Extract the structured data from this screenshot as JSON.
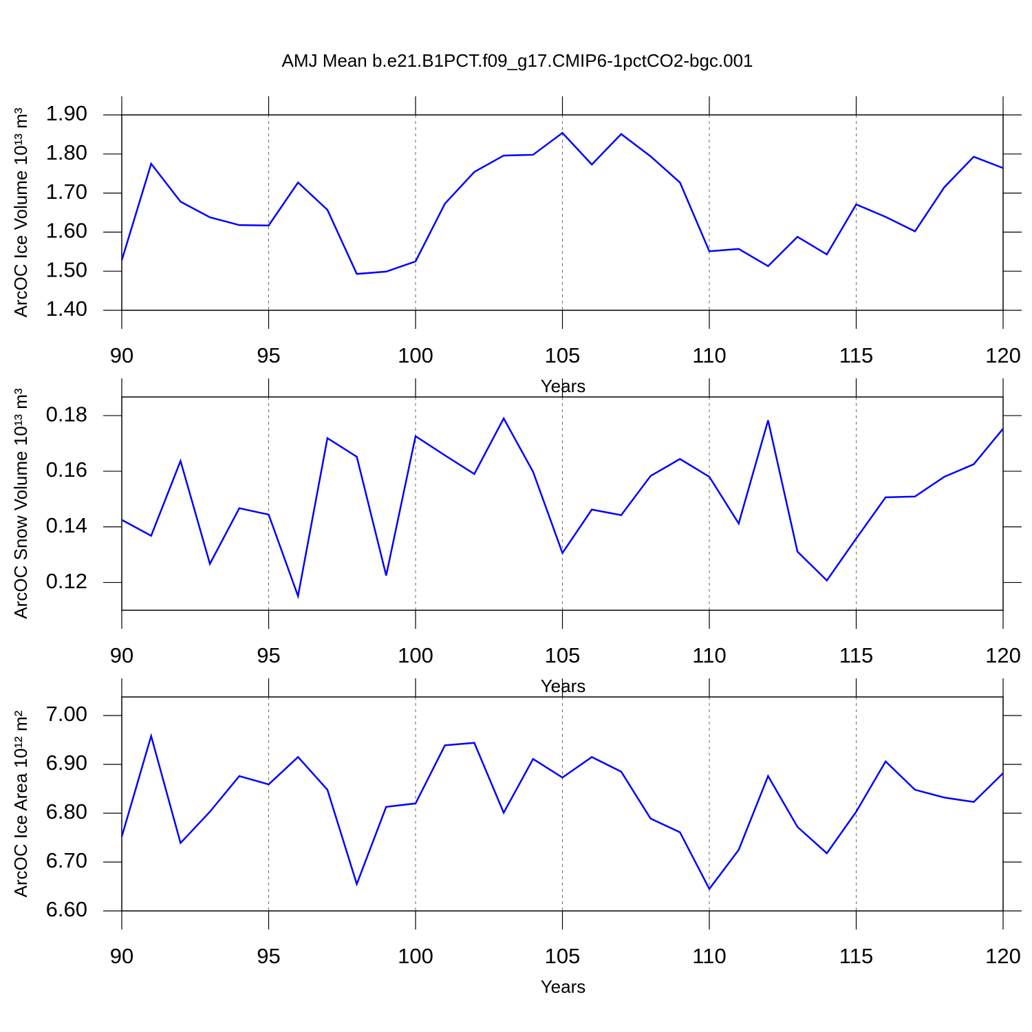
{
  "title": "AMJ Mean b.e21.B1PCT.f09_g17.CMIP6-1pctCO2-bgc.001",
  "chart_data": [
    {
      "type": "line",
      "ylabel": "ArcOC Ice Volume 10¹³ m³",
      "xlabel": "Years",
      "x": [
        90,
        91,
        92,
        93,
        94,
        95,
        96,
        97,
        98,
        99,
        100,
        101,
        102,
        103,
        104,
        105,
        106,
        107,
        108,
        109,
        110,
        111,
        112,
        113,
        114,
        115,
        116,
        117,
        118,
        119,
        120
      ],
      "series": [
        {
          "color": "#0000ff",
          "values": [
            1.528,
            1.775,
            1.678,
            1.638,
            1.618,
            1.617,
            1.727,
            1.657,
            1.493,
            1.499,
            1.525,
            1.673,
            1.754,
            1.796,
            1.798,
            1.854,
            1.773,
            1.851,
            1.794,
            1.727,
            1.551,
            1.557,
            1.513,
            1.588,
            1.543,
            1.671,
            1.639,
            1.602,
            1.715,
            1.793,
            1.764
          ]
        }
      ],
      "xlim": [
        90,
        120
      ],
      "xticks": [
        90,
        95,
        100,
        105,
        110,
        115,
        120
      ],
      "ylim": [
        1.4,
        1.9
      ],
      "yticks": [
        {
          "value": 1.4,
          "label": "1.40"
        },
        {
          "value": 1.5,
          "label": "1.50"
        },
        {
          "value": 1.6,
          "label": "1.60"
        },
        {
          "value": 1.7,
          "label": "1.70"
        },
        {
          "value": 1.8,
          "label": "1.80"
        },
        {
          "value": 1.9,
          "label": "1.90"
        }
      ],
      "grid": true
    },
    {
      "type": "line",
      "ylabel": "ArcOC Snow Volume 10¹³ m³",
      "xlabel": "Years",
      "x": [
        90,
        91,
        92,
        93,
        94,
        95,
        96,
        97,
        98,
        99,
        100,
        101,
        102,
        103,
        104,
        105,
        106,
        107,
        108,
        109,
        110,
        111,
        112,
        113,
        114,
        115,
        116,
        117,
        118,
        119,
        120
      ],
      "series": [
        {
          "color": "#0000ff",
          "values": [
            0.1425,
            0.1368,
            0.1637,
            0.1267,
            0.1467,
            0.1444,
            0.1151,
            0.1719,
            0.1652,
            0.1225,
            0.1726,
            0.1657,
            0.159,
            0.179,
            0.1598,
            0.1306,
            0.1462,
            0.1442,
            0.1583,
            0.1644,
            0.158,
            0.1412,
            0.1783,
            0.1311,
            0.1207,
            0.1358,
            0.1506,
            0.1509,
            0.158,
            0.1625,
            0.1753
          ]
        }
      ],
      "xlim": [
        90,
        120
      ],
      "xticks": [
        90,
        95,
        100,
        105,
        110,
        115,
        120
      ],
      "ylim": [
        0.11,
        0.1867
      ],
      "yticks": [
        0.12,
        0.14,
        0.16,
        0.18
      ],
      "grid": true
    },
    {
      "type": "line",
      "ylabel": "ArcOC Ice Area 10¹² m²",
      "xlabel": "Years",
      "x": [
        90,
        91,
        92,
        93,
        94,
        95,
        96,
        97,
        98,
        99,
        100,
        101,
        102,
        103,
        104,
        105,
        106,
        107,
        108,
        109,
        110,
        111,
        112,
        113,
        114,
        115,
        116,
        117,
        118,
        119,
        120
      ],
      "series": [
        {
          "color": "#0000ff",
          "values": [
            6.752,
            6.958,
            6.739,
            6.803,
            6.876,
            6.859,
            6.915,
            6.848,
            6.655,
            6.813,
            6.82,
            6.939,
            6.944,
            6.801,
            6.911,
            6.873,
            6.915,
            6.885,
            6.789,
            6.761,
            6.645,
            6.725,
            6.876,
            6.772,
            6.718,
            6.803,
            6.906,
            6.848,
            6.832,
            6.823,
            6.882
          ]
        }
      ],
      "xlim": [
        90,
        120
      ],
      "xticks": [
        90,
        95,
        100,
        105,
        110,
        115,
        120
      ],
      "ylim": [
        6.6,
        7.038
      ],
      "yticks": [
        {
          "value": 6.6,
          "label": "6.60"
        },
        {
          "value": 6.7,
          "label": "6.70"
        },
        {
          "value": 6.8,
          "label": "6.80"
        },
        {
          "value": 6.9,
          "label": "6.90"
        },
        {
          "value": 7.0,
          "label": "7.00"
        }
      ],
      "grid": true
    }
  ]
}
